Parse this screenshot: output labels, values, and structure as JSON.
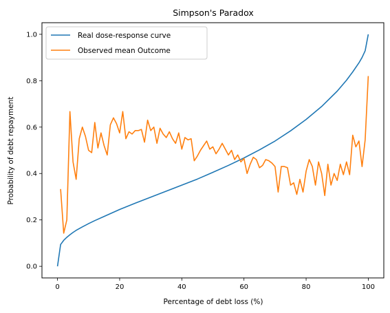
{
  "chart_data": {
    "type": "line",
    "title": "Simpson's Paradox",
    "xlabel": "Percentage of debt loss (%)",
    "ylabel": "Probability of debt repayment",
    "xlim": [
      -5,
      105
    ],
    "ylim": [
      -0.05,
      1.05
    ],
    "xticks": [
      0,
      20,
      40,
      60,
      80,
      100
    ],
    "yticks": [
      0.0,
      0.2,
      0.4,
      0.6,
      0.8,
      1.0
    ],
    "xtick_labels": [
      "0",
      "20",
      "40",
      "60",
      "80",
      "100"
    ],
    "ytick_labels": [
      "0.0",
      "0.2",
      "0.4",
      "0.6",
      "0.8",
      "1.0"
    ],
    "legend_position": "top-left",
    "series": [
      {
        "name": "Real dose-response curve",
        "color": "#1f77b4",
        "x": [
          0,
          1,
          2,
          3,
          4,
          5,
          6,
          8,
          10,
          12,
          15,
          20,
          25,
          30,
          35,
          40,
          45,
          50,
          55,
          60,
          65,
          70,
          75,
          80,
          85,
          90,
          93,
          95,
          97,
          98,
          99,
          100
        ],
        "y": [
          0.0,
          0.094,
          0.112,
          0.125,
          0.136,
          0.146,
          0.155,
          0.17,
          0.184,
          0.197,
          0.215,
          0.245,
          0.272,
          0.298,
          0.324,
          0.35,
          0.376,
          0.405,
          0.435,
          0.467,
          0.502,
          0.54,
          0.584,
          0.633,
          0.689,
          0.755,
          0.802,
          0.838,
          0.877,
          0.9,
          0.929,
          1.0
        ]
      },
      {
        "name": "Observed mean Outcome",
        "color": "#ff7f0e",
        "x": [
          1,
          2,
          3,
          4,
          5,
          6,
          7,
          8,
          9,
          10,
          11,
          12,
          13,
          14,
          15,
          16,
          17,
          18,
          19,
          20,
          21,
          22,
          23,
          24,
          25,
          26,
          27,
          28,
          29,
          30,
          31,
          32,
          33,
          34,
          35,
          36,
          37,
          38,
          39,
          40,
          41,
          42,
          43,
          44,
          45,
          46,
          47,
          48,
          49,
          50,
          51,
          52,
          53,
          54,
          55,
          56,
          57,
          58,
          59,
          60,
          61,
          62,
          63,
          64,
          65,
          66,
          67,
          68,
          69,
          70,
          71,
          72,
          73,
          74,
          75,
          76,
          77,
          78,
          79,
          80,
          81,
          82,
          83,
          84,
          85,
          86,
          87,
          88,
          89,
          90,
          91,
          92,
          93,
          94,
          95,
          96,
          97,
          98,
          99,
          100
        ],
        "y": [
          0.333,
          0.143,
          0.2,
          0.667,
          0.45,
          0.375,
          0.55,
          0.6,
          0.56,
          0.5,
          0.49,
          0.62,
          0.51,
          0.575,
          0.52,
          0.48,
          0.61,
          0.64,
          0.615,
          0.575,
          0.667,
          0.55,
          0.58,
          0.57,
          0.585,
          0.585,
          0.59,
          0.535,
          0.63,
          0.585,
          0.6,
          0.53,
          0.595,
          0.57,
          0.555,
          0.58,
          0.55,
          0.53,
          0.575,
          0.505,
          0.555,
          0.545,
          0.55,
          0.455,
          0.475,
          0.5,
          0.52,
          0.54,
          0.505,
          0.515,
          0.485,
          0.505,
          0.53,
          0.505,
          0.48,
          0.5,
          0.46,
          0.48,
          0.45,
          0.465,
          0.4,
          0.44,
          0.47,
          0.46,
          0.425,
          0.435,
          0.46,
          0.455,
          0.445,
          0.43,
          0.32,
          0.43,
          0.43,
          0.425,
          0.35,
          0.36,
          0.31,
          0.375,
          0.32,
          0.41,
          0.46,
          0.43,
          0.35,
          0.45,
          0.4,
          0.305,
          0.44,
          0.35,
          0.4,
          0.37,
          0.44,
          0.395,
          0.45,
          0.395,
          0.565,
          0.515,
          0.54,
          0.43,
          0.545,
          0.82
        ]
      }
    ]
  }
}
